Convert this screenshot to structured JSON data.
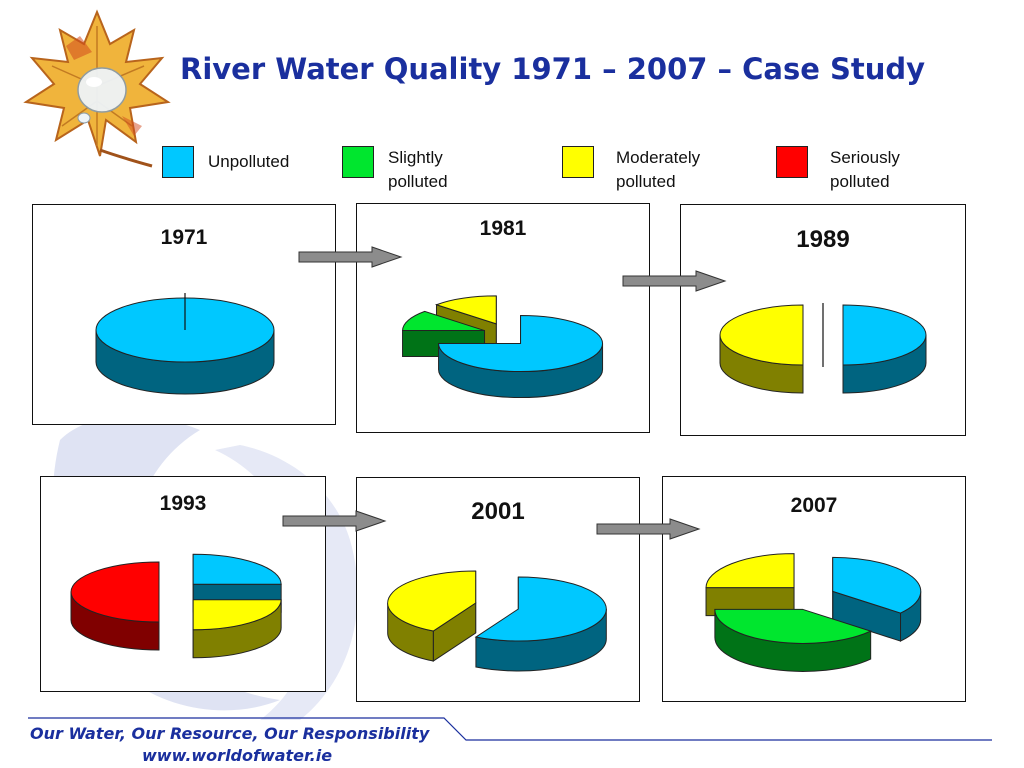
{
  "slide": {
    "title": "River Water Quality 1971 – 2007 – Case Study",
    "footer_slogan": "Our Water, Our Resource, Our Responsibility",
    "footer_url": "www.worldofwater.ie",
    "logo_icon": "maple-leaf-water-drop-icon"
  },
  "legend": [
    {
      "key": "unpolluted",
      "label": "Unpolluted",
      "color": "#00c8ff"
    },
    {
      "key": "slightly",
      "label": "Slightly polluted",
      "color": "#00e62e"
    },
    {
      "key": "moderately",
      "label": "Moderately polluted",
      "color": "#ffff00"
    },
    {
      "key": "seriously",
      "label": "Seriously polluted",
      "color": "#ff0000"
    }
  ],
  "chart_data": {
    "type": "pie",
    "categories": [
      "Unpolluted",
      "Slightly polluted",
      "Moderately polluted",
      "Seriously polluted"
    ],
    "colors": [
      "#00c8ff",
      "#00e62e",
      "#ffff00",
      "#ff0000"
    ],
    "charts": [
      {
        "title": "1971",
        "values": [
          100,
          0,
          0,
          0
        ]
      },
      {
        "title": "1981",
        "values": [
          75,
          12,
          13,
          0
        ]
      },
      {
        "title": "1989",
        "values": [
          50,
          0,
          50,
          0
        ]
      },
      {
        "title": "1993",
        "values": [
          25,
          0,
          25,
          50
        ]
      },
      {
        "title": "2001",
        "values": [
          58,
          0,
          42,
          0
        ]
      },
      {
        "title": "2007",
        "values": [
          36,
          39,
          25,
          0
        ]
      }
    ]
  }
}
